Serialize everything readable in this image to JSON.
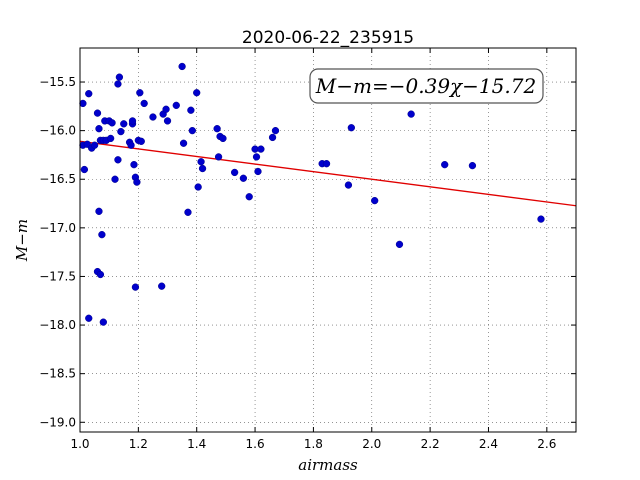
{
  "chart_data": {
    "type": "scatter",
    "title": "2020-06-22_235915",
    "xlabel": "airmass",
    "ylabel": "M−m",
    "annotation": "M−m=−0.39χ−15.72",
    "xlim": [
      1.0,
      2.7
    ],
    "ylim": [
      -19.1,
      -15.15
    ],
    "xticks": [
      1.0,
      1.2,
      1.4,
      1.6,
      1.8,
      2.0,
      2.2,
      2.4,
      2.6
    ],
    "xtick_labels": [
      "1.0",
      "1.2",
      "1.4",
      "1.6",
      "1.8",
      "2.0",
      "2.2",
      "2.4",
      "2.6"
    ],
    "yticks": [
      -15.5,
      -16.0,
      -16.5,
      -17.0,
      -17.5,
      -18.0,
      -18.5,
      -19.0
    ],
    "ytick_labels": [
      "−15.5",
      "−16.0",
      "−16.5",
      "−17.0",
      "−17.5",
      "−18.0",
      "−18.5",
      "−19.0"
    ],
    "grid": true,
    "fit": {
      "slope": -0.39,
      "intercept": -15.72,
      "color": "#e00000"
    },
    "point_color": "#0000cc",
    "points": [
      [
        1.01,
        -15.72
      ],
      [
        1.01,
        -16.15
      ],
      [
        1.015,
        -16.4
      ],
      [
        1.025,
        -16.14
      ],
      [
        1.03,
        -15.62
      ],
      [
        1.03,
        -17.93
      ],
      [
        1.04,
        -16.18
      ],
      [
        1.05,
        -16.15
      ],
      [
        1.06,
        -15.82
      ],
      [
        1.06,
        -17.45
      ],
      [
        1.065,
        -15.98
      ],
      [
        1.065,
        -16.83
      ],
      [
        1.07,
        -16.1
      ],
      [
        1.07,
        -17.48
      ],
      [
        1.075,
        -17.07
      ],
      [
        1.08,
        -16.1
      ],
      [
        1.08,
        -17.97
      ],
      [
        1.085,
        -15.9
      ],
      [
        1.09,
        -16.1
      ],
      [
        1.1,
        -15.9
      ],
      [
        1.105,
        -16.08
      ],
      [
        1.11,
        -15.92
      ],
      [
        1.12,
        -16.5
      ],
      [
        1.13,
        -15.52
      ],
      [
        1.13,
        -16.3
      ],
      [
        1.135,
        -15.45
      ],
      [
        1.14,
        -16.01
      ],
      [
        1.15,
        -15.93
      ],
      [
        1.17,
        -16.12
      ],
      [
        1.175,
        -16.15
      ],
      [
        1.18,
        -15.93
      ],
      [
        1.18,
        -15.9
      ],
      [
        1.185,
        -16.35
      ],
      [
        1.19,
        -17.61
      ],
      [
        1.19,
        -16.48
      ],
      [
        1.195,
        -16.53
      ],
      [
        1.2,
        -16.1
      ],
      [
        1.205,
        -15.61
      ],
      [
        1.21,
        -16.11
      ],
      [
        1.22,
        -15.72
      ],
      [
        1.25,
        -15.86
      ],
      [
        1.28,
        -17.6
      ],
      [
        1.285,
        -15.83
      ],
      [
        1.295,
        -15.78
      ],
      [
        1.3,
        -15.9
      ],
      [
        1.33,
        -15.74
      ],
      [
        1.35,
        -15.34
      ],
      [
        1.355,
        -16.13
      ],
      [
        1.37,
        -16.84
      ],
      [
        1.38,
        -15.79
      ],
      [
        1.385,
        -16.0
      ],
      [
        1.4,
        -15.61
      ],
      [
        1.405,
        -16.58
      ],
      [
        1.415,
        -16.32
      ],
      [
        1.42,
        -16.39
      ],
      [
        1.47,
        -15.98
      ],
      [
        1.475,
        -16.27
      ],
      [
        1.48,
        -16.06
      ],
      [
        1.49,
        -16.08
      ],
      [
        1.53,
        -16.43
      ],
      [
        1.56,
        -16.49
      ],
      [
        1.58,
        -16.68
      ],
      [
        1.6,
        -16.19
      ],
      [
        1.605,
        -16.27
      ],
      [
        1.61,
        -16.42
      ],
      [
        1.62,
        -16.19
      ],
      [
        1.66,
        -16.07
      ],
      [
        1.67,
        -16.0
      ],
      [
        1.83,
        -16.34
      ],
      [
        1.845,
        -16.34
      ],
      [
        1.92,
        -16.56
      ],
      [
        1.93,
        -15.97
      ],
      [
        2.01,
        -16.72
      ],
      [
        2.095,
        -17.17
      ],
      [
        2.135,
        -15.83
      ],
      [
        2.25,
        -16.35
      ],
      [
        2.345,
        -16.36
      ],
      [
        2.58,
        -16.91
      ]
    ]
  }
}
